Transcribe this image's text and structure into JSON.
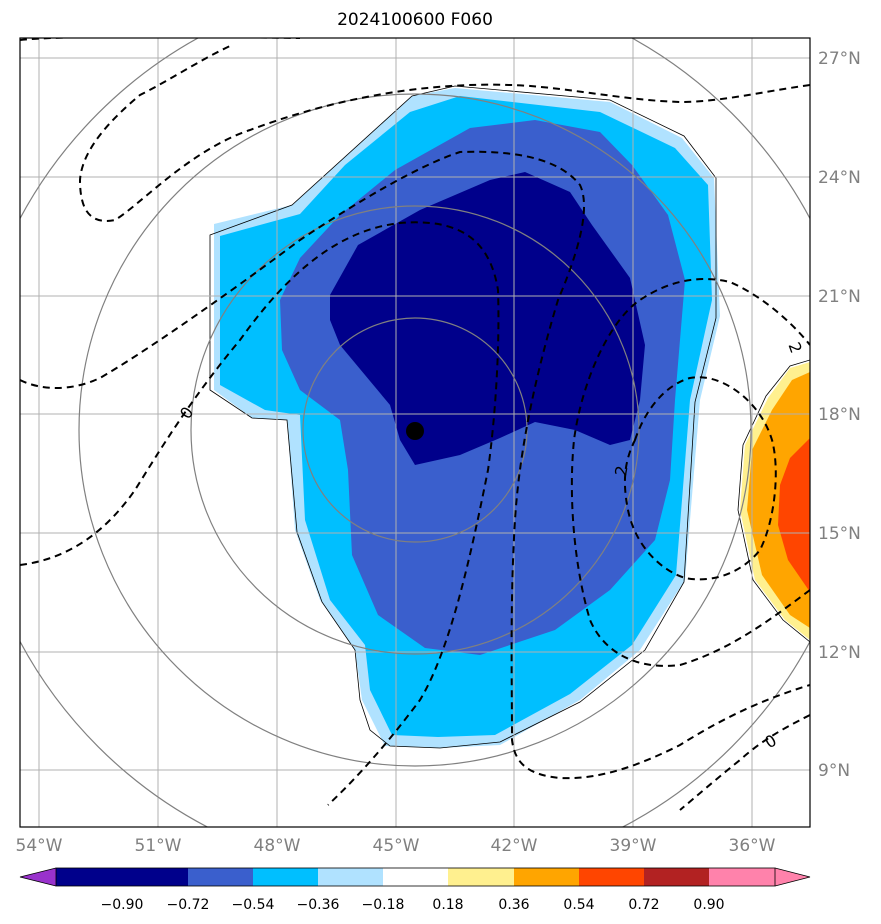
{
  "title": "2024100600 F060",
  "lon_labels": [
    "54°W",
    "51°W",
    "48°W",
    "45°W",
    "42°W",
    "39°W",
    "36°W"
  ],
  "lon_values": [
    -54,
    -51,
    -48,
    -45,
    -42,
    -39,
    -36
  ],
  "lat_labels": [
    "27°N",
    "24°N",
    "21°N",
    "18°N",
    "15°N",
    "12°N",
    "9°N"
  ],
  "lat_values": [
    27,
    24,
    21,
    18,
    15,
    12,
    9
  ],
  "contour_labels": [
    "0",
    "2",
    "2",
    "0"
  ],
  "colorbar": {
    "ticks": [
      "−0.90",
      "−0.72",
      "−0.54",
      "−0.36",
      "−0.18",
      "0.18",
      "0.36",
      "0.54",
      "0.72",
      "0.90"
    ],
    "colors": [
      "#9932cc",
      "#00008b",
      "#3a5fcd",
      "#00bfff",
      "#b0e2ff",
      "#ffffff",
      "#fff08f",
      "#ffa500",
      "#ff4500",
      "#b22222",
      "#ff82ab"
    ]
  },
  "colors": {
    "grid": "#b0b0b0",
    "range_rings": "#808080",
    "contour": "#000000",
    "center_marker": "#000000"
  }
}
